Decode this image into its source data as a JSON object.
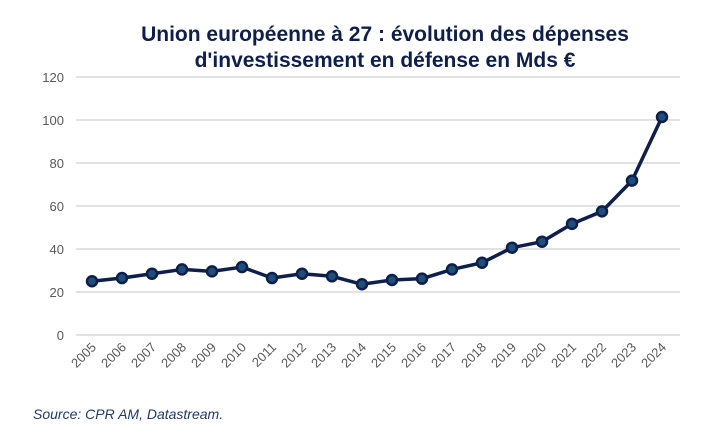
{
  "chart_data": {
    "type": "line",
    "title_line1": "Union européenne à 27 : évolution des dépenses",
    "title_line2": "d'investissement en défense en Mds €",
    "x": [
      "2005",
      "2006",
      "2007",
      "2008",
      "2009",
      "2010",
      "2011",
      "2012",
      "2013",
      "2014",
      "2015",
      "2016",
      "2017",
      "2018",
      "2019",
      "2020",
      "2021",
      "2022",
      "2023",
      "2024"
    ],
    "values": [
      25,
      26.5,
      28.5,
      30.5,
      29.6,
      31.6,
      26.5,
      28.5,
      27.3,
      23.6,
      25.6,
      26.2,
      30.5,
      33.6,
      40.6,
      43.4,
      51.7,
      57.5,
      71.8,
      101.4
    ],
    "ylim": [
      0,
      120
    ],
    "yticks": [
      0,
      20,
      40,
      60,
      80,
      100,
      120
    ],
    "grid": true,
    "legend": "none",
    "colors": {
      "line": "#0e1f4d",
      "marker_fill": "#1f4e79",
      "grid": "#d9d9d9"
    }
  },
  "source": "Source: CPR AM, Datastream."
}
